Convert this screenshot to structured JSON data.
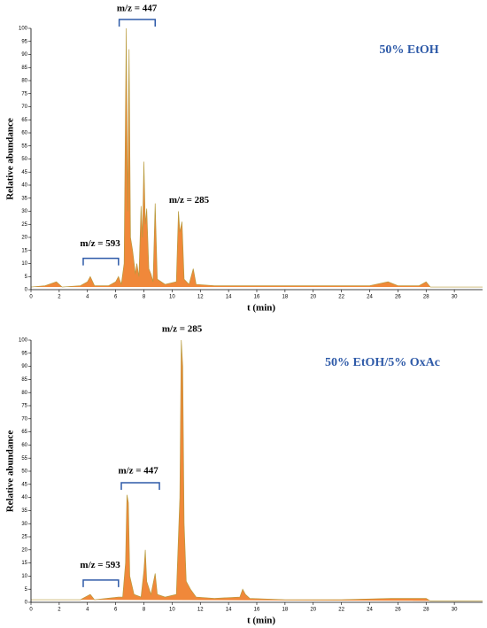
{
  "chart_data": [
    {
      "type": "area",
      "title": "50% EtOH",
      "xlabel": "t (min)",
      "ylabel": "Relative abundance",
      "xlim": [
        0,
        32
      ],
      "ylim": [
        0,
        100
      ],
      "xticks": [
        0,
        2,
        4,
        6,
        8,
        10,
        12,
        14,
        16,
        18,
        20,
        22,
        24,
        26,
        28,
        30
      ],
      "yticks": [
        0,
        5,
        10,
        15,
        20,
        25,
        30,
        35,
        40,
        45,
        50,
        55,
        60,
        65,
        70,
        75,
        80,
        85,
        90,
        95,
        100
      ],
      "series": [
        {
          "name": "50% EtOH",
          "color": "#f0883a",
          "x": [
            0,
            1,
            1.8,
            2.2,
            3.5,
            4.0,
            4.2,
            4.5,
            5.5,
            6.0,
            6.2,
            6.4,
            6.6,
            6.75,
            6.85,
            6.95,
            7.05,
            7.2,
            7.4,
            7.5,
            7.65,
            7.8,
            7.9,
            8.0,
            8.1,
            8.2,
            8.35,
            8.5,
            8.65,
            8.8,
            8.95,
            9.5,
            10.3,
            10.45,
            10.55,
            10.7,
            10.85,
            11.2,
            11.5,
            11.7,
            13,
            15,
            18,
            21,
            24,
            25.3,
            26,
            27.5,
            28,
            28.3,
            30,
            32
          ],
          "values": [
            1,
            1.5,
            3,
            1,
            1.5,
            3,
            5,
            1.5,
            1.5,
            3,
            5,
            2,
            10,
            100,
            30,
            92,
            20,
            15,
            6,
            10,
            5,
            32,
            20,
            49,
            25,
            31,
            8,
            6,
            3,
            33,
            4,
            2,
            3,
            30,
            22,
            26,
            4,
            2,
            8,
            2,
            1.5,
            1.5,
            1.5,
            1.5,
            1.5,
            3,
            1.5,
            1.5,
            3,
            1,
            1,
            1
          ]
        }
      ],
      "annotations": [
        {
          "text": "m/z = 447",
          "x": 7.5,
          "y": 107.5,
          "bracket": [
            6.25,
            8.8,
            103.4
          ]
        },
        {
          "text": "m/z = 285",
          "x": 11.2,
          "y": 34
        },
        {
          "text": "m/z = 593",
          "x": 4.9,
          "y": 17.5,
          "bracket": [
            3.7,
            6.2,
            12
          ]
        }
      ]
    },
    {
      "type": "area",
      "title": "50% EtOH/5% OxAc",
      "xlabel": "t (min)",
      "ylabel": "Relative abundance",
      "xlim": [
        0,
        32
      ],
      "ylim": [
        0,
        100
      ],
      "xticks": [
        0,
        2,
        4,
        6,
        8,
        10,
        12,
        14,
        16,
        18,
        20,
        22,
        24,
        26,
        28,
        30
      ],
      "yticks": [
        0,
        5,
        10,
        15,
        20,
        25,
        30,
        35,
        40,
        45,
        50,
        55,
        60,
        65,
        70,
        75,
        80,
        85,
        90,
        95,
        100
      ],
      "series": [
        {
          "name": "50% EtOH/5% OxAc",
          "color": "#f0883a",
          "x": [
            0,
            3.5,
            4.2,
            4.5,
            6.2,
            6.5,
            6.7,
            6.8,
            6.9,
            7.0,
            7.3,
            7.8,
            8.0,
            8.1,
            8.2,
            8.5,
            8.8,
            8.95,
            9.5,
            10.3,
            10.55,
            10.65,
            10.75,
            10.85,
            11.0,
            11.3,
            11.7,
            13,
            14.8,
            15.0,
            15.2,
            15.5,
            18,
            22,
            25.5,
            28,
            28.3,
            32
          ],
          "values": [
            1,
            1,
            3,
            1,
            2,
            2,
            15,
            41,
            38,
            10,
            3,
            2,
            12,
            20,
            8,
            3,
            11,
            3,
            2,
            3,
            40,
            100,
            90,
            30,
            8,
            5,
            2,
            1.5,
            2,
            5,
            3,
            1.5,
            1,
            1,
            1.5,
            1.5,
            0.5,
            0.5
          ]
        }
      ],
      "annotations": [
        {
          "text": "m/z = 285",
          "x": 10.7,
          "y": 104
        },
        {
          "text": "m/z = 447",
          "x": 7.6,
          "y": 50,
          "bracket": [
            6.4,
            9.1,
            45.6
          ]
        },
        {
          "text": "m/z = 593",
          "x": 4.9,
          "y": 14,
          "bracket": [
            3.7,
            6.2,
            8.5
          ]
        }
      ]
    }
  ]
}
